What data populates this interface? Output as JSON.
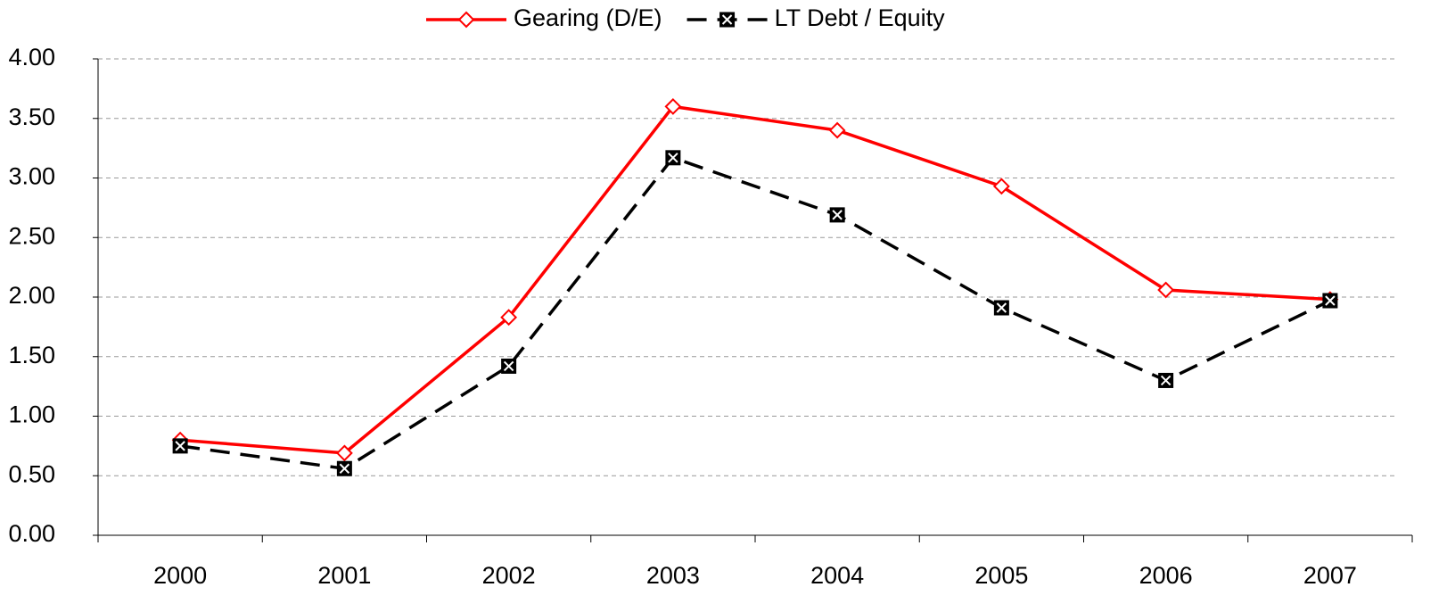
{
  "chart_data": {
    "type": "line",
    "categories": [
      "2000",
      "2001",
      "2002",
      "2003",
      "2004",
      "2005",
      "2006",
      "2007"
    ],
    "series": [
      {
        "name": "Gearing (D/E)",
        "color": "#ff0000",
        "dash": false,
        "marker": "diamond",
        "values": [
          0.8,
          0.69,
          1.83,
          3.6,
          3.4,
          2.93,
          2.06,
          1.98
        ]
      },
      {
        "name": "LT Debt / Equity",
        "color": "#000000",
        "dash": true,
        "marker": "square-x",
        "values": [
          0.75,
          0.56,
          1.42,
          3.17,
          2.69,
          1.91,
          1.3,
          1.97
        ]
      }
    ],
    "ylim": [
      0,
      4
    ],
    "yticks": [
      {
        "value": 0,
        "label": "0.00"
      },
      {
        "value": 0.5,
        "label": "0.50"
      },
      {
        "value": 1,
        "label": "1.00"
      },
      {
        "value": 1.5,
        "label": "1.50"
      },
      {
        "value": 2,
        "label": "2.00"
      },
      {
        "value": 2.5,
        "label": "2.50"
      },
      {
        "value": 3,
        "label": "3.00"
      },
      {
        "value": 3.5,
        "label": "3.50"
      },
      {
        "value": 4,
        "label": "4.00"
      }
    ],
    "grid": true,
    "legend": "top"
  }
}
